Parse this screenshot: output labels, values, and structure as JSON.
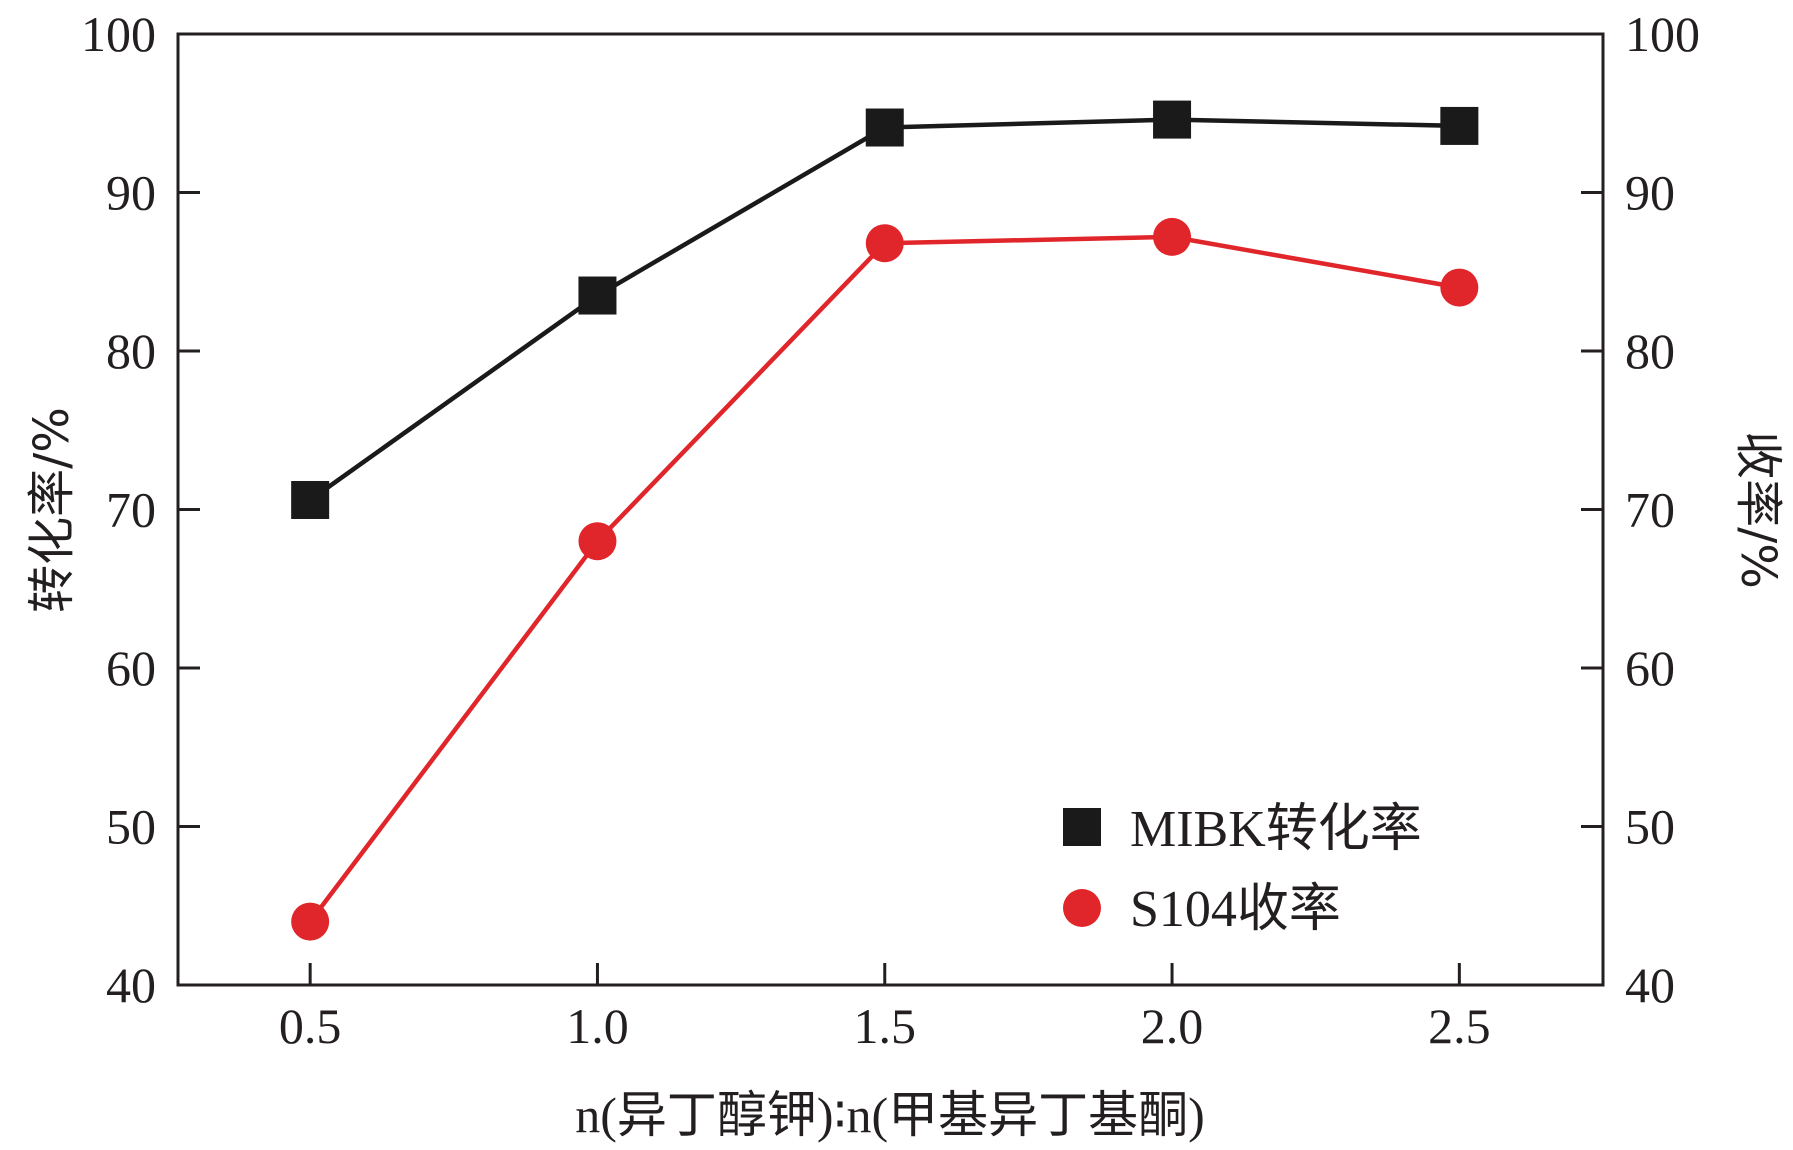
{
  "chart_data": {
    "type": "line",
    "x": [
      0.5,
      1.0,
      1.5,
      2.0,
      2.5
    ],
    "x_tick_labels": [
      "0.5",
      "1.0",
      "1.5",
      "2.0",
      "2.5"
    ],
    "xlim": [
      0.27,
      2.75
    ],
    "xlabel": "n(异丁醇钾)∶n(甲基异丁基酮)",
    "ylabel_left": "转化率/%",
    "ylabel_right": "收率/%",
    "ylim": [
      40,
      100
    ],
    "y_ticks": [
      40,
      50,
      60,
      70,
      80,
      90,
      100
    ],
    "grid": false,
    "legend_position": "bottom-right",
    "series": [
      {
        "name": "MIBK转化率",
        "marker": "square",
        "color": "#1a1a1a",
        "values": [
          70.6,
          83.5,
          94.1,
          94.6,
          94.2
        ]
      },
      {
        "name": "S104收率",
        "marker": "circle",
        "color": "#e0262b",
        "values": [
          44.0,
          68.0,
          86.8,
          87.2,
          84.0
        ]
      }
    ]
  }
}
